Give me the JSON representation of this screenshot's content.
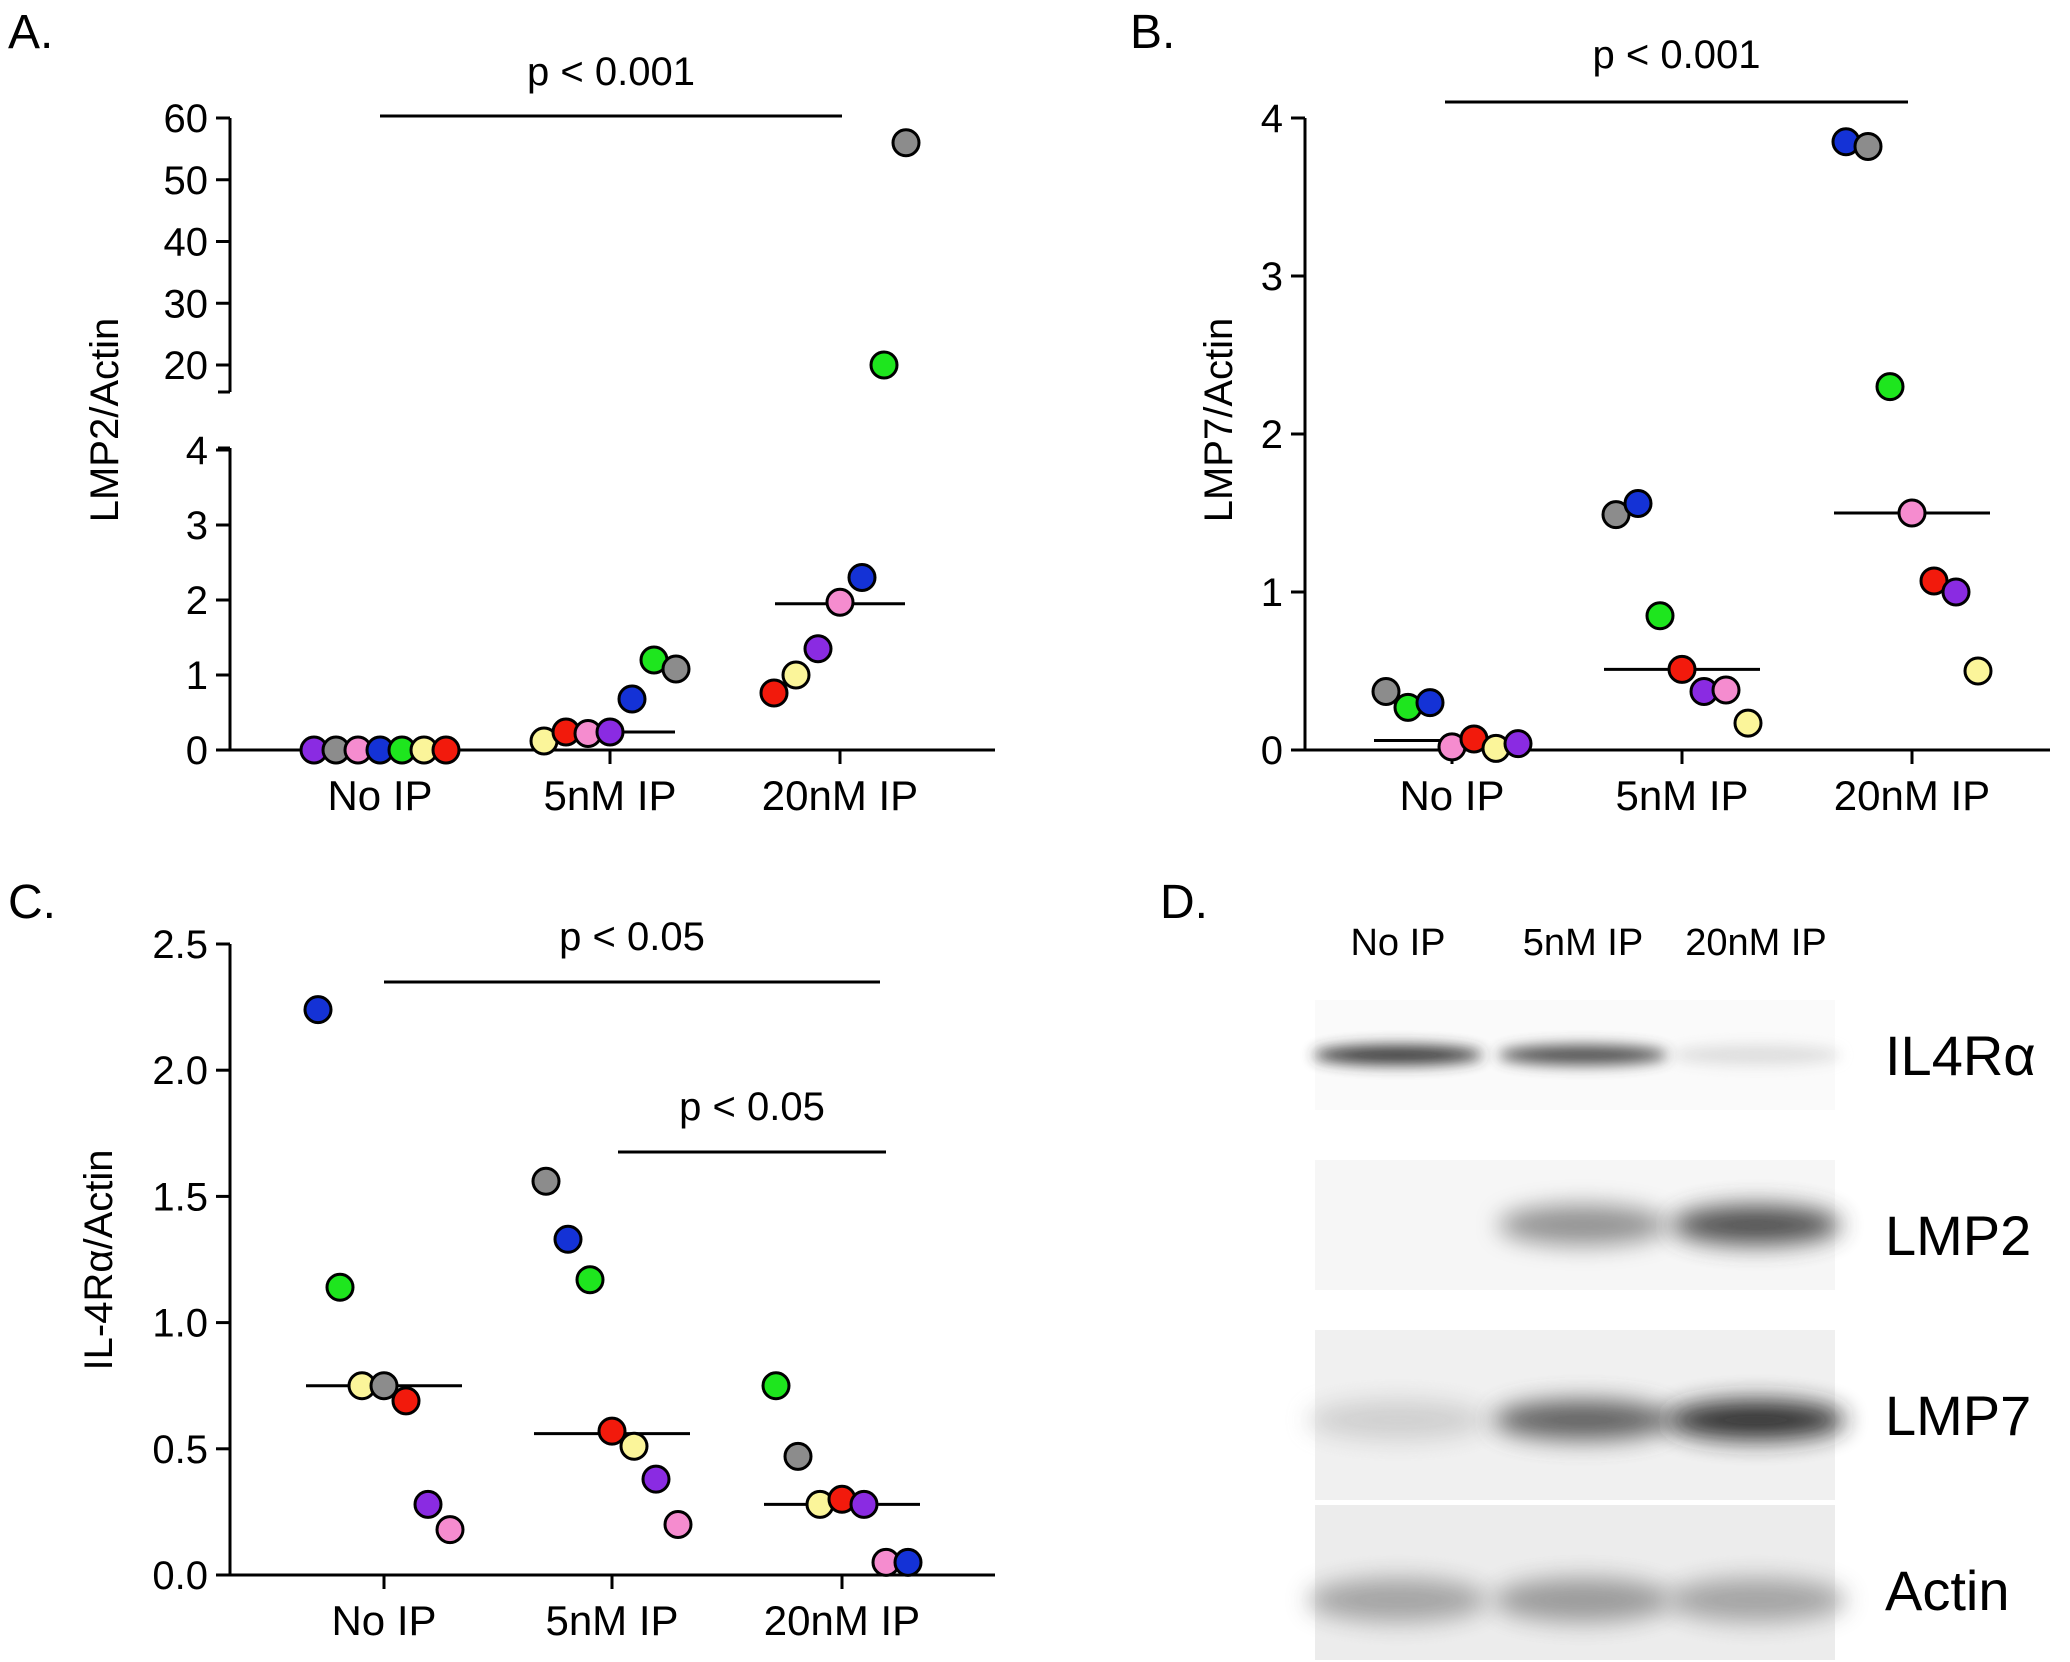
{
  "chart_data": [
    {
      "panel": "A.",
      "type": "scatter",
      "ylabel": "LMP2/Actin",
      "categories": [
        "No IP",
        "5nM IP",
        "20nM IP"
      ],
      "y_axis": "broken",
      "lower_ylim": [
        0,
        4
      ],
      "upper_ylim": [
        20,
        60
      ],
      "lower_ticks": [
        0,
        1,
        2,
        3,
        4
      ],
      "upper_ticks": [
        20,
        30,
        40,
        50,
        60
      ],
      "significance": [
        {
          "from": "No IP",
          "to": "20nM IP",
          "label": "p < 0.001"
        }
      ],
      "medians": [
        0.0,
        0.24,
        1.95
      ],
      "points": [
        {
          "cat": 0,
          "color": "purple",
          "y": 0.0
        },
        {
          "cat": 0,
          "color": "grey",
          "y": 0.0
        },
        {
          "cat": 0,
          "color": "pink",
          "y": 0.0
        },
        {
          "cat": 0,
          "color": "blue",
          "y": 0.0
        },
        {
          "cat": 0,
          "color": "green",
          "y": 0.0
        },
        {
          "cat": 0,
          "color": "yellow",
          "y": 0.0
        },
        {
          "cat": 0,
          "color": "red",
          "y": 0.0
        },
        {
          "cat": 1,
          "color": "yellow",
          "y": 0.12
        },
        {
          "cat": 1,
          "color": "red",
          "y": 0.24
        },
        {
          "cat": 1,
          "color": "pink",
          "y": 0.22
        },
        {
          "cat": 1,
          "color": "purple",
          "y": 0.24
        },
        {
          "cat": 1,
          "color": "blue",
          "y": 0.68
        },
        {
          "cat": 1,
          "color": "green",
          "y": 1.2
        },
        {
          "cat": 1,
          "color": "grey",
          "y": 1.08
        },
        {
          "cat": 2,
          "color": "red",
          "y": 0.76
        },
        {
          "cat": 2,
          "color": "yellow",
          "y": 1.0
        },
        {
          "cat": 2,
          "color": "purple",
          "y": 1.35
        },
        {
          "cat": 2,
          "color": "pink",
          "y": 1.97
        },
        {
          "cat": 2,
          "color": "blue",
          "y": 2.3
        },
        {
          "cat": 2,
          "color": "green",
          "y": 20
        },
        {
          "cat": 2,
          "color": "grey",
          "y": 56
        }
      ]
    },
    {
      "panel": "B.",
      "type": "scatter",
      "ylabel": "LMP7/Actin",
      "categories": [
        "No IP",
        "5nM IP",
        "20nM IP"
      ],
      "ylim": [
        0,
        4
      ],
      "ticks": [
        0,
        1,
        2,
        3,
        4
      ],
      "significance": [
        {
          "from": "No IP",
          "to": "20nM IP",
          "label": "p < 0.001"
        }
      ],
      "medians": [
        0.06,
        0.51,
        1.5
      ],
      "points": [
        {
          "cat": 0,
          "color": "grey",
          "y": 0.37
        },
        {
          "cat": 0,
          "color": "green",
          "y": 0.27
        },
        {
          "cat": 0,
          "color": "blue",
          "y": 0.3
        },
        {
          "cat": 0,
          "color": "pink",
          "y": 0.02
        },
        {
          "cat": 0,
          "color": "red",
          "y": 0.07
        },
        {
          "cat": 0,
          "color": "yellow",
          "y": 0.01
        },
        {
          "cat": 0,
          "color": "purple",
          "y": 0.04
        },
        {
          "cat": 1,
          "color": "grey",
          "y": 1.49
        },
        {
          "cat": 1,
          "color": "blue",
          "y": 1.56
        },
        {
          "cat": 1,
          "color": "green",
          "y": 0.85
        },
        {
          "cat": 1,
          "color": "red",
          "y": 0.51
        },
        {
          "cat": 1,
          "color": "purple",
          "y": 0.37
        },
        {
          "cat": 1,
          "color": "pink",
          "y": 0.38
        },
        {
          "cat": 1,
          "color": "yellow",
          "y": 0.17
        },
        {
          "cat": 2,
          "color": "blue",
          "y": 3.85
        },
        {
          "cat": 2,
          "color": "grey",
          "y": 3.82
        },
        {
          "cat": 2,
          "color": "green",
          "y": 2.3
        },
        {
          "cat": 2,
          "color": "pink",
          "y": 1.5
        },
        {
          "cat": 2,
          "color": "red",
          "y": 1.07
        },
        {
          "cat": 2,
          "color": "purple",
          "y": 1.0
        },
        {
          "cat": 2,
          "color": "yellow",
          "y": 0.5
        }
      ]
    },
    {
      "panel": "C.",
      "type": "scatter",
      "ylabel": "IL-4Rα/Actin",
      "categories": [
        "No IP",
        "5nM IP",
        "20nM IP"
      ],
      "ylim": [
        0,
        2.5
      ],
      "ticks": [
        "0.0",
        "0.5",
        "1.0",
        "1.5",
        "2.0",
        "2.5"
      ],
      "significance": [
        {
          "from": "No IP",
          "to": "20nM IP",
          "label": "p < 0.05"
        },
        {
          "from": "5nM IP",
          "to": "20nM IP",
          "label": "p < 0.05"
        }
      ],
      "medians": [
        0.75,
        0.56,
        0.28
      ],
      "points": [
        {
          "cat": 0,
          "color": "blue",
          "y": 2.24
        },
        {
          "cat": 0,
          "color": "green",
          "y": 1.14
        },
        {
          "cat": 0,
          "color": "yellow",
          "y": 0.75
        },
        {
          "cat": 0,
          "color": "grey",
          "y": 0.75
        },
        {
          "cat": 0,
          "color": "red",
          "y": 0.69
        },
        {
          "cat": 0,
          "color": "purple",
          "y": 0.28
        },
        {
          "cat": 0,
          "color": "pink",
          "y": 0.18
        },
        {
          "cat": 1,
          "color": "grey",
          "y": 1.56
        },
        {
          "cat": 1,
          "color": "blue",
          "y": 1.33
        },
        {
          "cat": 1,
          "color": "green",
          "y": 1.17
        },
        {
          "cat": 1,
          "color": "red",
          "y": 0.57
        },
        {
          "cat": 1,
          "color": "yellow",
          "y": 0.51
        },
        {
          "cat": 1,
          "color": "purple",
          "y": 0.38
        },
        {
          "cat": 1,
          "color": "pink",
          "y": 0.2
        },
        {
          "cat": 2,
          "color": "green",
          "y": 0.75
        },
        {
          "cat": 2,
          "color": "grey",
          "y": 0.47
        },
        {
          "cat": 2,
          "color": "yellow",
          "y": 0.28
        },
        {
          "cat": 2,
          "color": "red",
          "y": 0.3
        },
        {
          "cat": 2,
          "color": "purple",
          "y": 0.28
        },
        {
          "cat": 2,
          "color": "pink",
          "y": 0.05
        },
        {
          "cat": 2,
          "color": "blue",
          "y": 0.05
        }
      ]
    }
  ],
  "colors": {
    "purple": "#8a2be2",
    "grey": "#8c8c8c",
    "pink": "#f58ccf",
    "blue": "#1432d6",
    "green": "#1ee61e",
    "yellow": "#fbf59a",
    "red": "#f21a0c"
  },
  "blot": {
    "panel": "D.",
    "lanes": [
      "No IP",
      "5nM IP",
      "20nM IP"
    ],
    "rows": [
      "IL4Rα",
      "LMP2",
      "LMP7",
      "Actin"
    ],
    "band_intensity": [
      [
        0.9,
        0.8,
        0.05
      ],
      [
        0.0,
        0.45,
        0.8
      ],
      [
        0.12,
        0.7,
        0.95
      ],
      [
        0.35,
        0.4,
        0.35
      ]
    ]
  }
}
